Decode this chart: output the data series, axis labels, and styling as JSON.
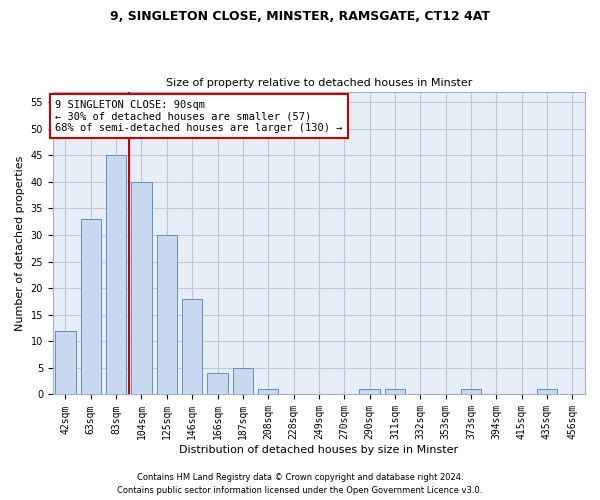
{
  "title_line1": "9, SINGLETON CLOSE, MINSTER, RAMSGATE, CT12 4AT",
  "title_line2": "Size of property relative to detached houses in Minster",
  "xlabel": "Distribution of detached houses by size in Minster",
  "ylabel": "Number of detached properties",
  "bar_labels": [
    "42sqm",
    "63sqm",
    "83sqm",
    "104sqm",
    "125sqm",
    "146sqm",
    "166sqm",
    "187sqm",
    "208sqm",
    "228sqm",
    "249sqm",
    "270sqm",
    "290sqm",
    "311sqm",
    "332sqm",
    "353sqm",
    "373sqm",
    "394sqm",
    "415sqm",
    "435sqm",
    "456sqm"
  ],
  "bar_values": [
    12,
    33,
    45,
    40,
    30,
    18,
    4,
    5,
    1,
    0,
    0,
    0,
    1,
    1,
    0,
    0,
    1,
    0,
    0,
    1,
    0
  ],
  "bar_color": "#c8d8ef",
  "bar_edge_color": "#6090c0",
  "grid_color": "#c0c8d8",
  "bg_color": "#e8eef8",
  "vline_x": 2.5,
  "vline_color": "#cc0000",
  "annotation_line1": "9 SINGLETON CLOSE: 90sqm",
  "annotation_line2": "← 30% of detached houses are smaller (57)",
  "annotation_line3": "68% of semi-detached houses are larger (130) →",
  "annotation_box_color": "#ffffff",
  "annotation_box_edge": "#cc0000",
  "ylim": [
    0,
    57
  ],
  "yticks": [
    0,
    5,
    10,
    15,
    20,
    25,
    30,
    35,
    40,
    45,
    50,
    55
  ],
  "bar_width": 0.8,
  "title_fontsize": 9,
  "subtitle_fontsize": 8,
  "tick_fontsize": 7,
  "ylabel_fontsize": 8,
  "xlabel_fontsize": 8,
  "annot_fontsize": 7.5,
  "footer_line1": "Contains HM Land Registry data © Crown copyright and database right 2024.",
  "footer_line2": "Contains public sector information licensed under the Open Government Licence v3.0."
}
